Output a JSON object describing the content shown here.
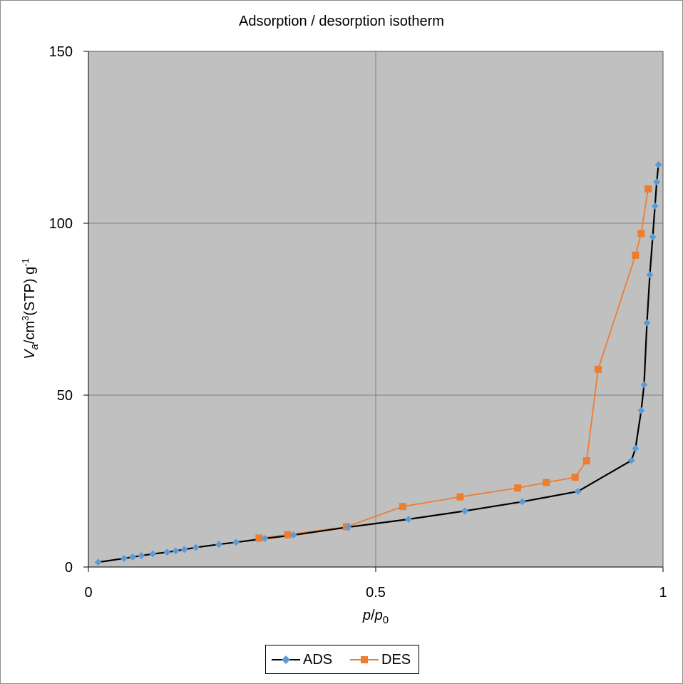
{
  "chart_data": {
    "type": "scatter",
    "title": "Adsorption / desorption isotherm",
    "xlabel": {
      "main": "p",
      "slash": "/",
      "main2": "p",
      "sub": "0"
    },
    "ylabel": {
      "v": "V",
      "sub": "a",
      "rest1": "/cm",
      "sup": "3",
      "rest2": "(STP) g",
      "sup2": "-1"
    },
    "xlim": [
      0,
      1
    ],
    "ylim": [
      0,
      150
    ],
    "x_ticks": [
      {
        "value": 0,
        "label": "0"
      },
      {
        "value": 0.5,
        "label": "0.5"
      },
      {
        "value": 1,
        "label": "1"
      }
    ],
    "y_ticks": [
      {
        "value": 0,
        "label": "0"
      },
      {
        "value": 50,
        "label": "50"
      },
      {
        "value": 100,
        "label": "100"
      },
      {
        "value": 150,
        "label": "150"
      }
    ],
    "grid": true,
    "plot_background": "#c0c0c0",
    "legend_position": "bottom",
    "series": [
      {
        "name": "ADS",
        "line_color": "#000000",
        "marker_color": "#5b9bd5",
        "marker": "diamond",
        "x": [
          0.017,
          0.062,
          0.077,
          0.092,
          0.112,
          0.137,
          0.152,
          0.167,
          0.187,
          0.227,
          0.257,
          0.307,
          0.357,
          0.452,
          0.557,
          0.655,
          0.755,
          0.852,
          0.945,
          0.952,
          0.962,
          0.967,
          0.972,
          0.977,
          0.982,
          0.986,
          0.989,
          0.992
        ],
        "y": [
          1.4,
          2.5,
          2.9,
          3.3,
          3.8,
          4.3,
          4.7,
          5.1,
          5.7,
          6.6,
          7.2,
          8.3,
          9.3,
          11.6,
          13.9,
          16.3,
          19.0,
          22.0,
          31.0,
          34.5,
          45.5,
          53.0,
          71.0,
          85.0,
          96.0,
          105.0,
          112.0,
          117.0
        ]
      },
      {
        "name": "DES",
        "line_color": "#ed7d31",
        "marker_color": "#ed7d31",
        "marker": "square",
        "x": [
          0.297,
          0.347,
          0.449,
          0.547,
          0.647,
          0.747,
          0.797,
          0.847,
          0.867,
          0.887,
          0.952,
          0.962,
          0.974
        ],
        "y": [
          8.4,
          9.4,
          11.7,
          17.6,
          20.4,
          23.0,
          24.6,
          26.1,
          30.9,
          57.5,
          90.7,
          97.0,
          110.0
        ]
      }
    ]
  }
}
